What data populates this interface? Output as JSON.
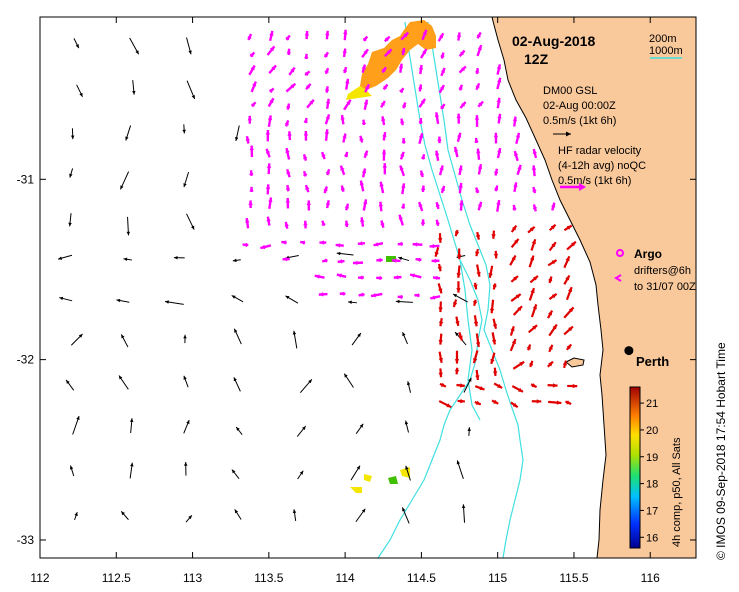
{
  "map": {
    "date": "02-Aug-2018",
    "time": "12Z",
    "x_ticks": [
      "112",
      "112.5",
      "113",
      "113.5",
      "114",
      "114.5",
      "115",
      "115.5",
      "116"
    ],
    "x_tick_values": [
      112,
      112.5,
      113,
      113.5,
      114,
      114.5,
      115,
      115.5,
      116
    ],
    "y_ticks": [
      "-31",
      "-32",
      "-33"
    ],
    "y_tick_values": [
      -31,
      -32,
      -33
    ],
    "lon_range": [
      112,
      116.3
    ],
    "lat_range": [
      -33.1,
      -30.1
    ],
    "isobaths": {
      "shallow_label": "200m",
      "deep_label": "1000m",
      "color": "#40e0e0"
    },
    "land_color": "#f9c89b",
    "model_legend": {
      "line1": "DM00 GSL",
      "line2": "02-Aug 00:00Z",
      "scale": "0.5m/s (1kt 6h)"
    },
    "radar_legend": {
      "line1": "HF radar velocity",
      "line2": "(4-12h avg) noQC",
      "scale": "0.5m/s (1kt 6h)",
      "color": "#ff00ff"
    },
    "argo_legend": {
      "label": "Argo",
      "color": "#ff00ff"
    },
    "drifter_legend": {
      "line1": "drifters@6h",
      "line2": "to 31/07 00Z"
    },
    "city": {
      "name": "Perth",
      "lon": 115.86,
      "lat": -31.95
    },
    "colorbar": {
      "title": "4h comp, p50, All Sats",
      "ticks": [
        "21",
        "20",
        "19",
        "18",
        "17",
        "16"
      ],
      "tick_values": [
        21,
        20,
        19,
        18,
        17,
        16
      ],
      "range": [
        15.6,
        21.6
      ]
    },
    "credit": "© IMOS 09-Sep-2018 17:54 Hobart Time",
    "colors": {
      "radar": "#ff00ff",
      "fast": "#e00000",
      "sst_orange": "#ff9f1a",
      "sst_yellow": "#f5e600",
      "sst_green": "#40c000"
    }
  }
}
